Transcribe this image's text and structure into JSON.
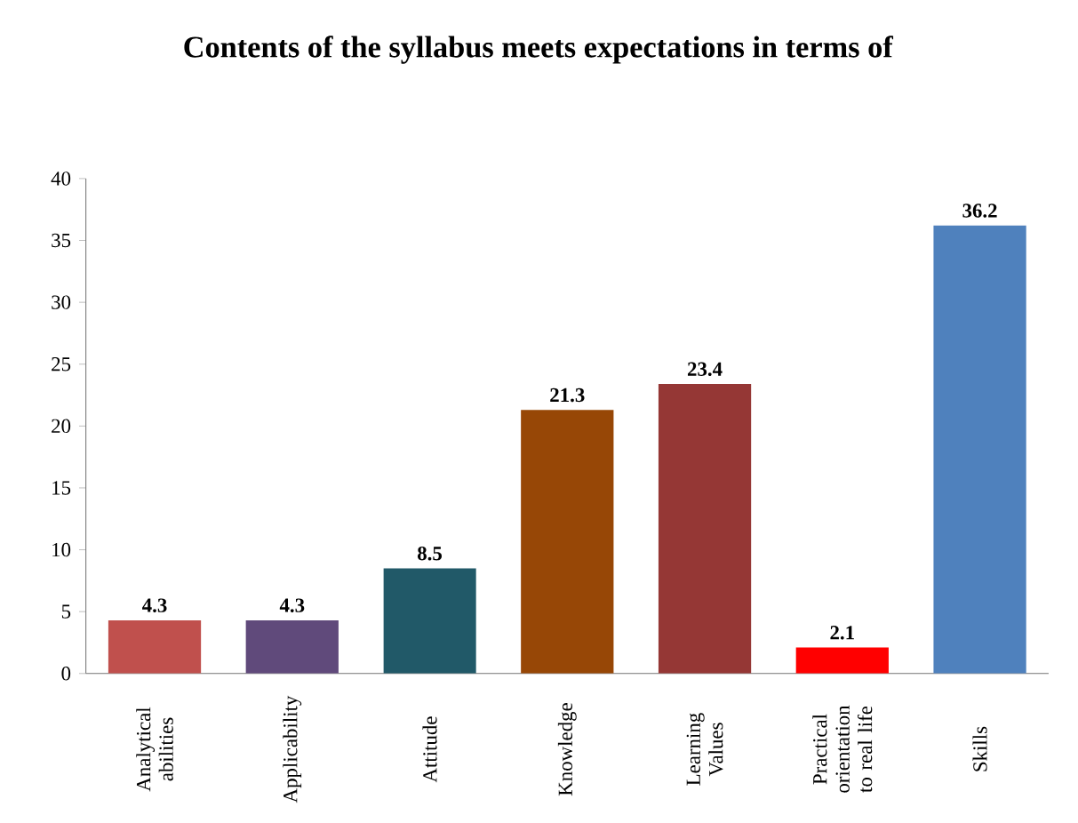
{
  "chart_data": {
    "type": "bar",
    "title": "Contents of the syllabus meets expectations in terms of",
    "categories": [
      "Analytical abilities",
      "Applicability",
      "Attitude",
      "Knowledge",
      "Learning Values",
      "Practical orientation to real life",
      "Skills"
    ],
    "values": [
      4.3,
      4.3,
      8.5,
      21.3,
      23.4,
      2.1,
      36.2
    ],
    "colors": [
      "#c0504d",
      "#604a7b",
      "#215968",
      "#974706",
      "#953735",
      "#ff0000",
      "#4f81bd"
    ],
    "ylim": [
      0,
      40
    ],
    "yticks": [
      0,
      5,
      10,
      15,
      20,
      25,
      30,
      35,
      40
    ],
    "data_labels": true
  }
}
